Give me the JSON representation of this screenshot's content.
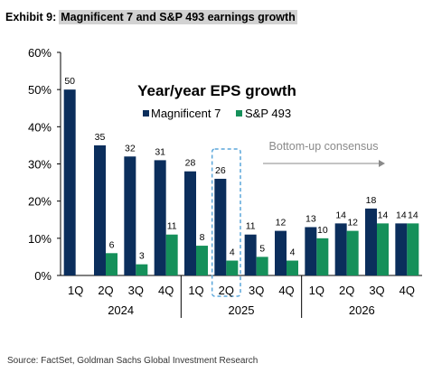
{
  "header": {
    "exhibit_label": "Exhibit 9:",
    "title": "Magnificent 7 and S&P 493 earnings growth"
  },
  "source": "Source: FactSet, Goldman Sachs Global Investment Research",
  "chart_data": {
    "type": "bar",
    "title": "Year/year EPS growth",
    "categories": [
      "1Q",
      "2Q",
      "3Q",
      "4Q",
      "1Q",
      "2Q",
      "3Q",
      "4Q",
      "1Q",
      "2Q",
      "3Q",
      "4Q"
    ],
    "year_groups": [
      {
        "label": "2024",
        "start": 0,
        "end": 3
      },
      {
        "label": "2025",
        "start": 4,
        "end": 7
      },
      {
        "label": "2026",
        "start": 8,
        "end": 11
      }
    ],
    "series": [
      {
        "name": "Magnificent 7",
        "color": "#0b2e5c",
        "values": [
          50,
          35,
          32,
          31,
          28,
          26,
          11,
          12,
          13,
          14,
          18,
          14
        ],
        "labels": [
          "50",
          "35",
          "32",
          "31",
          "28",
          "26",
          "11",
          "12",
          "13",
          "14",
          "18",
          "14"
        ]
      },
      {
        "name": "S&P 493",
        "color": "#15905a",
        "values": [
          null,
          6,
          3,
          11,
          8,
          4,
          5,
          4,
          10,
          12,
          14,
          14
        ],
        "labels": [
          "",
          "6",
          "3",
          "11",
          "8",
          "4",
          "5",
          "4",
          "10",
          "12",
          "14",
          "14"
        ]
      }
    ],
    "ylim": [
      0,
      60
    ],
    "yticks": [
      0,
      10,
      20,
      30,
      40,
      50,
      60
    ],
    "ytick_labels": [
      "0%",
      "10%",
      "20%",
      "30%",
      "40%",
      "50%",
      "60%"
    ],
    "gridlines": false,
    "legend_position": "top",
    "highlight_category_index": 5,
    "annotation": {
      "text": "Bottom-up consensus",
      "color": "#8a8a8a"
    }
  }
}
